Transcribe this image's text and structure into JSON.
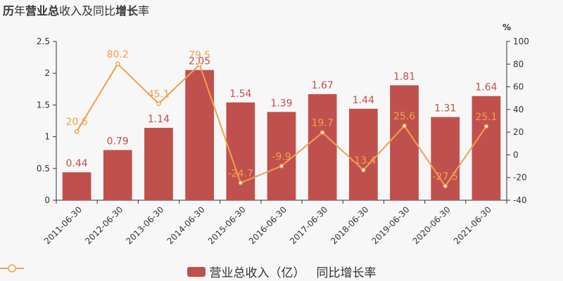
{
  "title": {
    "parts": [
      {
        "text": "历",
        "bold": true
      },
      {
        "text": "年",
        "bold": false
      },
      {
        "text": "营业总",
        "bold": true
      },
      {
        "text": "收入及同比",
        "bold": false
      },
      {
        "text": "增长",
        "bold": true
      },
      {
        "text": "率",
        "bold": false
      }
    ]
  },
  "colors": {
    "bar": "#c0504d",
    "line": "#f0a050",
    "bar_label": "#c0504d",
    "line_label": "#f0a050"
  },
  "legend": {
    "bar_label": "营业总收入（亿）",
    "line_label": "同比增长率"
  },
  "chart_data": {
    "type": "bar",
    "categories": [
      "2011-06-30",
      "2012-06-30",
      "2013-06-30",
      "2014-06-30",
      "2015-06-30",
      "2016-06-30",
      "2017-06-30",
      "2018-06-30",
      "2019-06-30",
      "2020-06-30",
      "2021-06-30"
    ],
    "series": [
      {
        "name": "营业总收入（亿）",
        "type": "bar",
        "axis": "left",
        "values": [
          0.44,
          0.79,
          1.14,
          2.05,
          1.54,
          1.39,
          1.67,
          1.44,
          1.81,
          1.31,
          1.64
        ]
      },
      {
        "name": "同比增长率",
        "type": "line",
        "axis": "right",
        "values": [
          20.6,
          80.2,
          45.1,
          79.5,
          -24.7,
          -9.9,
          19.7,
          -13.4,
          25.6,
          -27.5,
          25.1
        ]
      }
    ],
    "left_axis": {
      "ylim": [
        0,
        2.5
      ],
      "ticks": [
        "0",
        "0.5",
        "1",
        "1.5",
        "2",
        "2.5"
      ]
    },
    "right_axis": {
      "ylim": [
        -40,
        100
      ],
      "unit": "%",
      "ticks": [
        "-40",
        "-20",
        "0",
        "20",
        "40",
        "60",
        "80",
        "100"
      ]
    },
    "grid": false,
    "legend_position": "bottom-center"
  }
}
